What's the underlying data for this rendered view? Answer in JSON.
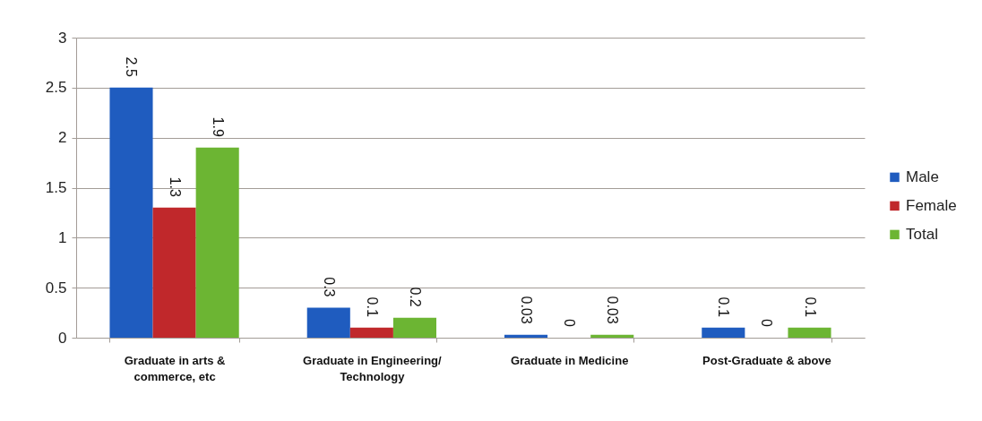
{
  "chart_data": {
    "type": "bar",
    "categories": [
      "Graduate in arts & commerce, etc",
      "Graduate in Engineering/ Technology",
      "Graduate in Medicine",
      "Post-Graduate & above"
    ],
    "series": [
      {
        "name": "Male",
        "color": "#1f5cbf",
        "values": [
          2.5,
          0.3,
          0.03,
          0.1
        ]
      },
      {
        "name": "Female",
        "color": "#c0282b",
        "values": [
          1.3,
          0.1,
          0,
          0
        ]
      },
      {
        "name": "Total",
        "color": "#6cb533",
        "values": [
          1.9,
          0.2,
          0.03,
          0.1
        ]
      }
    ],
    "ylim": [
      0,
      3
    ],
    "yticks": [
      0,
      0.5,
      1,
      1.5,
      2,
      2.5,
      3
    ],
    "grid": "y",
    "legend": "right",
    "data_labels": true
  }
}
